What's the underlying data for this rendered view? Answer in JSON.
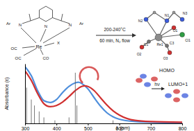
{
  "chart_data": {
    "type": "line",
    "x_label": "λ (nm)",
    "y_label": "Absorbance (ε)",
    "xlim": [
      300,
      800
    ],
    "xticks": [
      300,
      400,
      500,
      600,
      700,
      800
    ],
    "ylim": [
      0,
      1
    ],
    "tick_labels": "x",
    "series": [
      {
        "color": "#4f8fdc",
        "x": [
          300,
          320,
          340,
          360,
          380,
          400,
          420,
          440,
          460,
          470,
          480,
          500,
          520,
          540,
          560,
          580,
          600,
          650,
          700,
          800
        ],
        "values": [
          0.95,
          0.8,
          0.55,
          0.38,
          0.35,
          0.4,
          0.52,
          0.62,
          0.68,
          0.69,
          0.67,
          0.58,
          0.43,
          0.29,
          0.18,
          0.11,
          0.07,
          0.03,
          0.02,
          0.01
        ]
      },
      {
        "color": "#d03030",
        "x": [
          300,
          320,
          340,
          360,
          380,
          400,
          420,
          440,
          460,
          480,
          490,
          500,
          520,
          540,
          560,
          580,
          600,
          650,
          700,
          800
        ],
        "values": [
          0.88,
          0.72,
          0.5,
          0.33,
          0.28,
          0.3,
          0.36,
          0.45,
          0.55,
          0.62,
          0.63,
          0.62,
          0.55,
          0.43,
          0.31,
          0.21,
          0.14,
          0.05,
          0.03,
          0.02
        ]
      },
      {
        "type": "stem",
        "color": "#555555",
        "x": [
          305,
          320,
          330,
          345,
          360,
          395,
          440,
          460,
          465,
          580
        ],
        "values": [
          0.6,
          0.4,
          0.3,
          0.2,
          0.1,
          0.05,
          0.1,
          0.85,
          0.3,
          0.05
        ]
      }
    ],
    "annotations": [
      "Ar",
      "N",
      "N",
      "N",
      "Ar",
      "Re",
      "X",
      "OC",
      "OC",
      "CO",
      "200-240°C",
      "60 min, N₂ flow",
      "N2",
      "N1",
      "N3",
      "O1",
      "Cl1",
      "Re1",
      "C1",
      "O2",
      "C3",
      "O3",
      "HOMO",
      "hν",
      "LUMO+1"
    ]
  }
}
